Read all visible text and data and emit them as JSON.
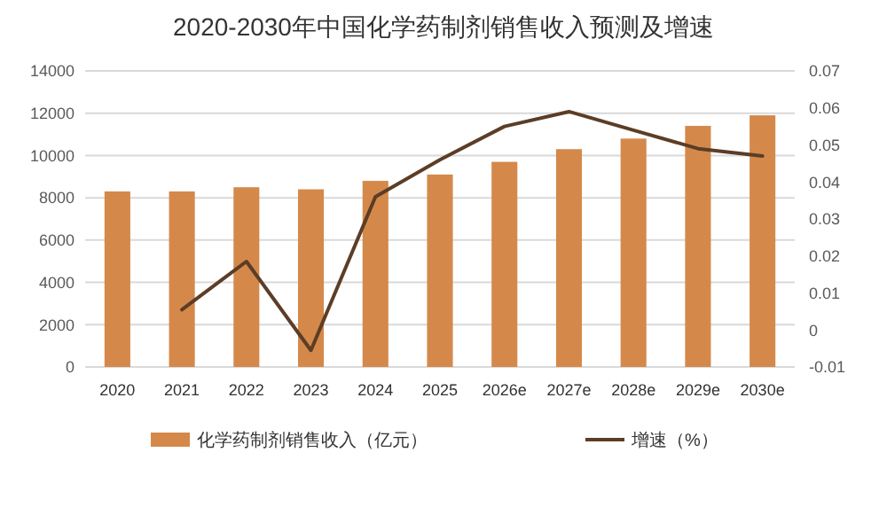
{
  "chart_data": {
    "type": "bar",
    "title": "2020-2030年中国化学药制剂销售收入预测及增速",
    "categories": [
      "2020",
      "2021",
      "2022",
      "2023",
      "2024",
      "2025",
      "2026e",
      "2027e",
      "2028e",
      "2029e",
      "2030e"
    ],
    "series": [
      {
        "name": "化学药制剂销售收入（亿元）",
        "color": "#d4894a",
        "values": [
          8300,
          8300,
          8500,
          8400,
          8800,
          9100,
          9700,
          10300,
          10800,
          11400,
          11900
        ]
      },
      {
        "name": "增速（%）",
        "type": "line",
        "axis": "y2",
        "color": "#5c3d26",
        "values": [
          null,
          0.0055,
          0.0185,
          -0.0055,
          0.036,
          0.046,
          0.055,
          0.059,
          0.054,
          0.049,
          0.047
        ]
      }
    ],
    "ylim": [
      0,
      14000
    ],
    "yticks": [
      0,
      2000,
      4000,
      6000,
      8000,
      10000,
      12000,
      14000
    ],
    "y2lim": [
      -0.01,
      0.07
    ],
    "y2ticks": [
      {
        "value": -0.01,
        "label": "-0.01"
      },
      {
        "value": 0,
        "label": "0"
      },
      {
        "value": 0.01,
        "label": "0.01"
      },
      {
        "value": 0.02,
        "label": "0.02"
      },
      {
        "value": 0.03,
        "label": "0.03"
      },
      {
        "value": 0.04,
        "label": "0.04"
      },
      {
        "value": 0.05,
        "label": "0.05"
      },
      {
        "value": 0.06,
        "label": "0.06"
      },
      {
        "value": 0.07,
        "label": "0.07"
      }
    ],
    "grid": "y",
    "legend": "bottom"
  }
}
